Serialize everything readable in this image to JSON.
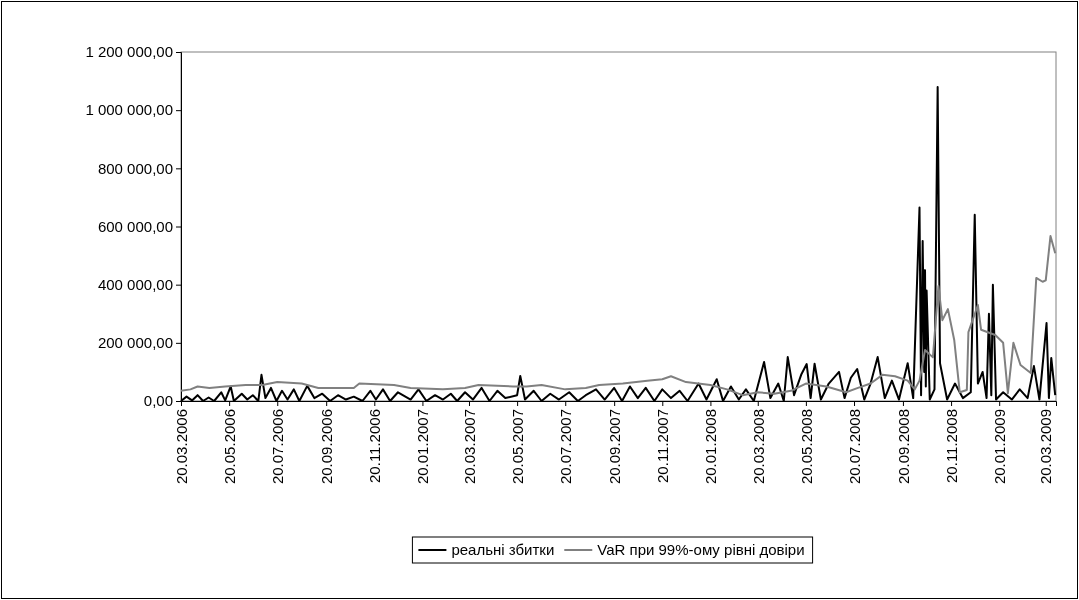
{
  "chart_data": {
    "type": "line",
    "xlim": [
      "2006-03-20",
      "2009-04-02"
    ],
    "xticks": [
      {
        "value": "2006-03-20",
        "label": "20.03.2006"
      },
      {
        "value": "2006-05-20",
        "label": "20.05.2006"
      },
      {
        "value": "2006-07-20",
        "label": "20.07.2006"
      },
      {
        "value": "2006-09-20",
        "label": "20.09.2006"
      },
      {
        "value": "2006-11-20",
        "label": "20.11.2006"
      },
      {
        "value": "2007-01-20",
        "label": "20.01.2007"
      },
      {
        "value": "2007-03-20",
        "label": "20.03.2007"
      },
      {
        "value": "2007-05-20",
        "label": "20.05.2007"
      },
      {
        "value": "2007-07-20",
        "label": "20.07.2007"
      },
      {
        "value": "2007-09-20",
        "label": "20.09.2007"
      },
      {
        "value": "2007-11-20",
        "label": "20.11.2007"
      },
      {
        "value": "2008-01-20",
        "label": "20.01.2008"
      },
      {
        "value": "2008-03-20",
        "label": "20.03.2008"
      },
      {
        "value": "2008-05-20",
        "label": "20.05.2008"
      },
      {
        "value": "2008-07-20",
        "label": "20.07.2008"
      },
      {
        "value": "2008-09-20",
        "label": "20.09.2008"
      },
      {
        "value": "2008-11-20",
        "label": "20.11.2008"
      },
      {
        "value": "2009-01-20",
        "label": "20.01.2009"
      },
      {
        "value": "2009-03-20",
        "label": "20.03.2009"
      }
    ],
    "ylim": [
      0,
      1200000
    ],
    "yticks": [
      {
        "value": 0,
        "label": "0,00"
      },
      {
        "value": 200000,
        "label": "200 000,00"
      },
      {
        "value": 400000,
        "label": "400 000,00"
      },
      {
        "value": 600000,
        "label": "600 000,00"
      },
      {
        "value": 800000,
        "label": "800 000,00"
      },
      {
        "value": 1000000,
        "label": "1 000 000,00"
      },
      {
        "value": 1200000,
        "label": "1 200 000,00"
      }
    ],
    "grid": false,
    "legend": "bottom",
    "series": [
      {
        "name": "реальні збитки",
        "color": "#000000",
        "x": [
          "2006-03-20",
          "2006-03-27",
          "2006-04-03",
          "2006-04-10",
          "2006-04-17",
          "2006-04-24",
          "2006-05-01",
          "2006-05-10",
          "2006-05-15",
          "2006-05-22",
          "2006-05-26",
          "2006-06-05",
          "2006-06-12",
          "2006-06-19",
          "2006-06-26",
          "2006-06-30",
          "2006-07-05",
          "2006-07-12",
          "2006-07-19",
          "2006-07-26",
          "2006-08-02",
          "2006-08-10",
          "2006-08-17",
          "2006-08-27",
          "2006-09-05",
          "2006-09-15",
          "2006-09-25",
          "2006-10-05",
          "2006-10-15",
          "2006-10-25",
          "2006-11-05",
          "2006-11-15",
          "2006-11-22",
          "2006-12-01",
          "2006-12-10",
          "2006-12-20",
          "2007-01-05",
          "2007-01-15",
          "2007-01-25",
          "2007-02-05",
          "2007-02-15",
          "2007-02-25",
          "2007-03-05",
          "2007-03-15",
          "2007-03-25",
          "2007-04-05",
          "2007-04-15",
          "2007-04-25",
          "2007-05-05",
          "2007-05-20",
          "2007-05-24",
          "2007-05-30",
          "2007-06-10",
          "2007-06-20",
          "2007-07-01",
          "2007-07-12",
          "2007-07-25",
          "2007-08-05",
          "2007-08-15",
          "2007-08-28",
          "2007-09-08",
          "2007-09-20",
          "2007-09-30",
          "2007-10-10",
          "2007-10-20",
          "2007-10-30",
          "2007-11-10",
          "2007-11-20",
          "2007-12-01",
          "2007-12-12",
          "2007-12-22",
          "2008-01-05",
          "2008-01-15",
          "2008-01-28",
          "2008-02-05",
          "2008-02-15",
          "2008-02-25",
          "2008-03-05",
          "2008-03-15",
          "2008-03-28",
          "2008-04-05",
          "2008-04-15",
          "2008-04-22",
          "2008-04-27",
          "2008-05-05",
          "2008-05-14",
          "2008-05-21",
          "2008-05-26",
          "2008-05-31",
          "2008-06-08",
          "2008-06-18",
          "2008-07-01",
          "2008-07-08",
          "2008-07-16",
          "2008-07-24",
          "2008-08-02",
          "2008-08-10",
          "2008-08-19",
          "2008-08-28",
          "2008-09-06",
          "2008-09-15",
          "2008-09-26",
          "2008-10-03",
          "2008-10-11",
          "2008-10-13",
          "2008-10-15",
          "2008-10-17",
          "2008-10-18",
          "2008-10-19",
          "2008-10-20",
          "2008-10-24",
          "2008-10-30",
          "2008-11-03",
          "2008-11-06",
          "2008-11-15",
          "2008-11-25",
          "2008-12-05",
          "2008-12-15",
          "2008-12-20",
          "2008-12-24",
          "2008-12-30",
          "2009-01-04",
          "2009-01-07",
          "2009-01-10",
          "2009-01-12",
          "2009-01-16",
          "2009-01-25",
          "2009-02-05",
          "2009-02-15",
          "2009-02-25",
          "2009-03-05",
          "2009-03-12",
          "2009-03-21",
          "2009-03-24",
          "2009-03-27",
          "2009-04-01"
        ],
        "values": [
          0,
          15000,
          2000,
          20000,
          0,
          12000,
          0,
          30000,
          2000,
          50000,
          0,
          25000,
          5000,
          20000,
          0,
          90000,
          10000,
          45000,
          0,
          35000,
          5000,
          40000,
          0,
          52000,
          10000,
          25000,
          0,
          20000,
          5000,
          15000,
          0,
          35000,
          5000,
          40000,
          0,
          30000,
          5000,
          40000,
          0,
          20000,
          5000,
          25000,
          0,
          30000,
          5000,
          45000,
          0,
          35000,
          10000,
          20000,
          86000,
          5000,
          35000,
          0,
          25000,
          5000,
          30000,
          0,
          20000,
          40000,
          5000,
          45000,
          0,
          50000,
          10000,
          45000,
          0,
          40000,
          10000,
          35000,
          0,
          60000,
          5000,
          75000,
          0,
          50000,
          5000,
          40000,
          0,
          134000,
          10000,
          60000,
          0,
          151000,
          20000,
          90000,
          127000,
          10000,
          128000,
          5000,
          60000,
          100000,
          10000,
          80000,
          110000,
          5000,
          60000,
          151000,
          10000,
          70000,
          5000,
          130000,
          10000,
          665000,
          20000,
          550000,
          100000,
          450000,
          50000,
          380000,
          5000,
          40000,
          1080000,
          130000,
          5000,
          60000,
          10000,
          30000,
          640000,
          60000,
          100000,
          10000,
          300000,
          20000,
          400000,
          5000,
          30000,
          5000,
          40000,
          10000,
          120000,
          5000,
          268000,
          10000,
          148000,
          20000
        ]
      },
      {
        "name": "VaR при 99%-ому рівні довіри",
        "color": "#808080",
        "x": [
          "2006-03-20",
          "2006-04-01",
          "2006-04-10",
          "2006-04-25",
          "2006-05-15",
          "2006-06-10",
          "2006-07-01",
          "2006-07-20",
          "2006-08-20",
          "2006-09-10",
          "2006-10-01",
          "2006-10-25",
          "2006-11-01",
          "2006-12-15",
          "2007-01-05",
          "2007-02-15",
          "2007-03-15",
          "2007-04-01",
          "2007-05-15",
          "2007-06-01",
          "2007-06-20",
          "2007-07-20",
          "2007-08-15",
          "2007-09-01",
          "2007-10-01",
          "2007-11-01",
          "2007-11-20",
          "2007-12-01",
          "2007-12-20",
          "2008-01-20",
          "2008-02-10",
          "2008-03-01",
          "2008-03-20",
          "2008-04-10",
          "2008-05-01",
          "2008-05-20",
          "2008-06-15",
          "2008-07-10",
          "2008-07-25",
          "2008-08-10",
          "2008-08-25",
          "2008-09-10",
          "2008-09-26",
          "2008-10-05",
          "2008-10-11",
          "2008-10-18",
          "2008-10-28",
          "2008-11-04",
          "2008-11-09",
          "2008-11-16",
          "2008-11-24",
          "2008-12-01",
          "2008-12-10",
          "2008-12-12",
          "2008-12-24",
          "2008-12-28",
          "2009-01-15",
          "2009-01-25",
          "2009-01-31",
          "2009-02-07",
          "2009-02-16",
          "2009-03-01",
          "2009-03-08",
          "2009-03-16",
          "2009-03-20",
          "2009-03-26",
          "2009-04-01"
        ],
        "values": [
          35000,
          40000,
          50000,
          45000,
          50000,
          55000,
          55000,
          65000,
          60000,
          45000,
          45000,
          45000,
          60000,
          55000,
          45000,
          40000,
          45000,
          55000,
          50000,
          50000,
          55000,
          40000,
          45000,
          55000,
          60000,
          70000,
          75000,
          85000,
          65000,
          55000,
          40000,
          20000,
          30000,
          25000,
          35000,
          60000,
          50000,
          30000,
          45000,
          60000,
          90000,
          85000,
          70000,
          40000,
          70000,
          175000,
          150000,
          395000,
          278000,
          316000,
          210000,
          30000,
          38000,
          237000,
          330000,
          245000,
          227000,
          200000,
          27000,
          200000,
          124000,
          96000,
          423000,
          410000,
          415000,
          567000,
          508000
        ]
      }
    ]
  }
}
